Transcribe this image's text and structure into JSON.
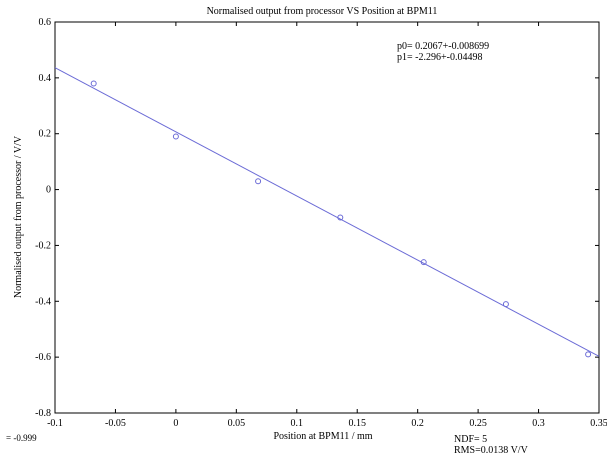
{
  "chart_data": {
    "type": "scatter",
    "title": "Normalised output from processor VS Position at BPM11",
    "xlabel": "Position at BPM11 / mm",
    "ylabel": "Normalised output from processor / V/V",
    "xlim": [
      -0.1,
      0.35
    ],
    "ylim": [
      -0.8,
      0.6
    ],
    "x_ticks": [
      "-0.1",
      "-0.05",
      "0",
      "0.05",
      "0.1",
      "0.15",
      "0.2",
      "0.25",
      "0.3",
      "0.35"
    ],
    "y_ticks": [
      "-0.8",
      "-0.6",
      "-0.4",
      "-0.2",
      "0",
      "0.2",
      "0.4",
      "0.6"
    ],
    "grid": false,
    "points": [
      {
        "x": -0.068,
        "y": 0.38
      },
      {
        "x": 0.0,
        "y": 0.19
      },
      {
        "x": 0.068,
        "y": 0.03
      },
      {
        "x": 0.136,
        "y": -0.1
      },
      {
        "x": 0.205,
        "y": -0.26
      },
      {
        "x": 0.273,
        "y": -0.41
      },
      {
        "x": 0.341,
        "y": -0.59
      }
    ],
    "fit": {
      "intercept": 0.2067,
      "slope": -2.296
    },
    "annotations": {
      "p0": "p0= 0.2067+-0.008699",
      "p1": "p1= -2.296+-0.04498",
      "corr": "= -0.999",
      "ndf": "NDF=     5",
      "rms": "RMS=0.0138  V/V"
    },
    "colors": {
      "marker": "#6b6bd6",
      "line": "#6b6bd6",
      "axis": "#000000"
    }
  }
}
